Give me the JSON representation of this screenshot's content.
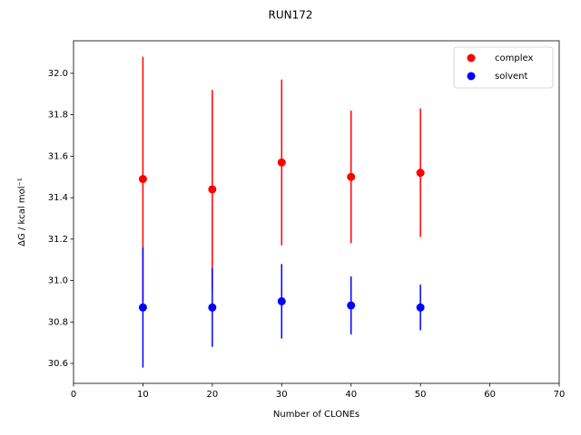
{
  "chart_data": {
    "type": "scatter",
    "title": "RUN172",
    "xlabel": "Number of CLONEs",
    "ylabel": "ΔG / kcal mol⁻¹",
    "x": [
      10,
      20,
      30,
      40,
      50
    ],
    "series": [
      {
        "name": "complex",
        "color": "#ff0000",
        "values": [
          31.49,
          31.44,
          31.57,
          31.5,
          31.52
        ],
        "errors": [
          0.59,
          0.48,
          0.4,
          0.32,
          0.31
        ]
      },
      {
        "name": "solvent",
        "color": "#0000ff",
        "values": [
          30.87,
          30.87,
          30.9,
          30.88,
          30.87
        ],
        "errors": [
          0.29,
          0.19,
          0.18,
          0.14,
          0.11
        ]
      }
    ],
    "xlim": [
      0,
      70
    ],
    "xticks": [
      0,
      10,
      20,
      30,
      40,
      50,
      60,
      70
    ],
    "ylim": [
      30.504,
      32.157
    ],
    "yticks": [
      30.6,
      30.8,
      {
        "value": 31,
        "label": "31.0"
      },
      31.2,
      31.4,
      31.6,
      31.8,
      {
        "value": 32,
        "label": "32.0"
      }
    ],
    "legend": "upper right"
  }
}
